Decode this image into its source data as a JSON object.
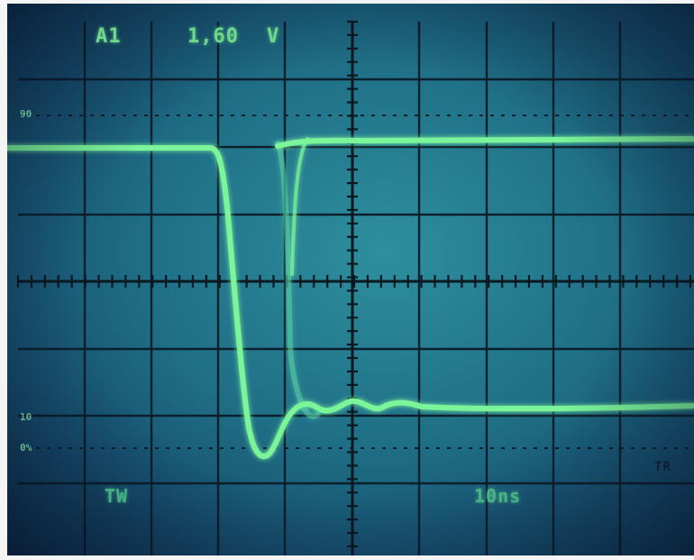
{
  "screen": {
    "channel": "A1",
    "volts_per_div": "1,60",
    "unit": "V",
    "trigger_label": "TW",
    "timebase": "10ns",
    "marker_label": "TR",
    "side_markers": [
      "90",
      "10",
      "0%"
    ]
  },
  "colors": {
    "phosphor": "#7cf59a",
    "graticule": "#0c1f2c",
    "screen_center": "#2e8f9d"
  }
}
